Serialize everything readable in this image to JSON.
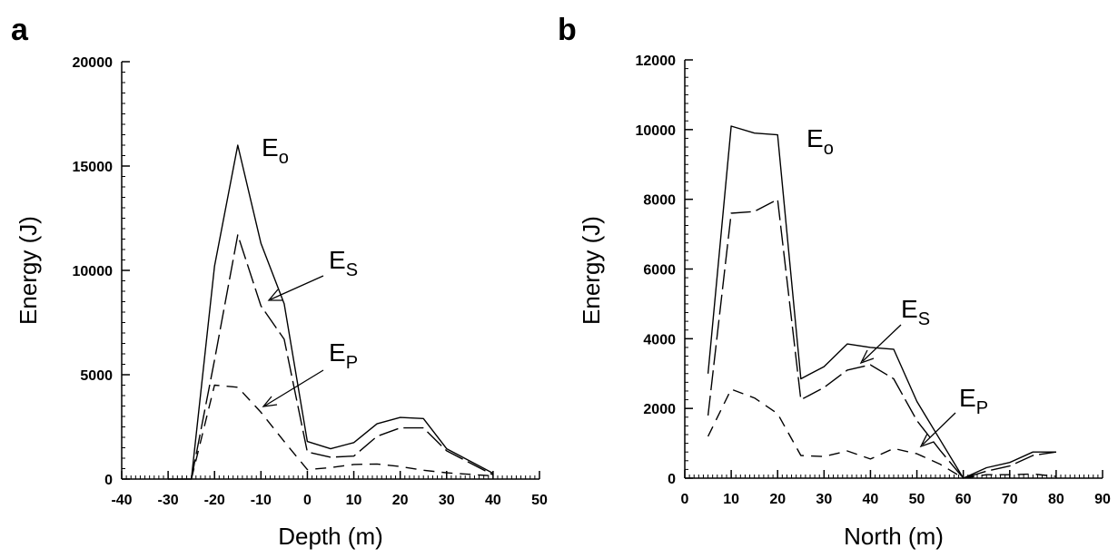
{
  "figure": {
    "panels": [
      "a",
      "b"
    ]
  },
  "chart_data": [
    {
      "type": "line",
      "panel_label": "a",
      "xlabel": "Depth (m)",
      "ylabel": "Energy (J)",
      "xlim": [
        -40,
        50
      ],
      "ylim": [
        0,
        20000
      ],
      "x_ticks": [
        -40,
        -30,
        -20,
        -10,
        0,
        10,
        20,
        30,
        40,
        50
      ],
      "y_ticks": [
        0,
        5000,
        10000,
        15000,
        20000
      ],
      "grid": false,
      "legend": "none",
      "series": [
        {
          "name": "Eo",
          "style": "solid",
          "x": [
            -30,
            -25,
            -20,
            -15,
            -10,
            -5,
            0,
            5,
            10,
            15,
            20,
            25,
            30,
            40
          ],
          "y": [
            0,
            0,
            10200,
            16000,
            11300,
            8400,
            1800,
            1450,
            1750,
            2650,
            2950,
            2900,
            1450,
            280
          ]
        },
        {
          "name": "Es",
          "style": "long-dash",
          "x": [
            -25,
            -20,
            -15,
            -10,
            -5,
            0,
            5,
            10,
            15,
            20,
            25,
            30,
            40
          ],
          "y": [
            0,
            5700,
            11700,
            8300,
            6700,
            1300,
            1050,
            1100,
            2050,
            2450,
            2450,
            1350,
            200
          ]
        },
        {
          "name": "Ep",
          "style": "short-dash",
          "x": [
            -25,
            -20,
            -15,
            -10,
            -5,
            0,
            5,
            10,
            15,
            20,
            25,
            30,
            40
          ],
          "y": [
            0,
            4500,
            4400,
            3200,
            1800,
            450,
            550,
            700,
            720,
            600,
            420,
            300,
            150
          ]
        }
      ],
      "annotations": [
        {
          "main": "E",
          "sub": "o"
        },
        {
          "main": "E",
          "sub": "S"
        },
        {
          "main": "E",
          "sub": "P"
        }
      ]
    },
    {
      "type": "line",
      "panel_label": "b",
      "xlabel": "North (m)",
      "ylabel": "Energy (J)",
      "xlim": [
        0,
        90
      ],
      "ylim": [
        0,
        12000
      ],
      "x_ticks": [
        0,
        10,
        20,
        30,
        40,
        50,
        60,
        70,
        80,
        90
      ],
      "y_ticks": [
        0,
        2000,
        4000,
        6000,
        8000,
        10000,
        12000
      ],
      "grid": false,
      "legend": "none",
      "series": [
        {
          "name": "Eo",
          "style": "solid",
          "x": [
            5,
            10,
            15,
            20,
            25,
            30,
            35,
            40,
            45,
            50,
            55,
            60,
            65,
            70,
            75,
            80
          ],
          "y": [
            3000,
            10100,
            9900,
            9850,
            2850,
            3200,
            3850,
            3750,
            3700,
            2200,
            1100,
            0,
            300,
            450,
            750,
            750
          ]
        },
        {
          "name": "Es",
          "style": "long-dash",
          "x": [
            5,
            10,
            15,
            20,
            25,
            30,
            35,
            40,
            45,
            50,
            55,
            60,
            65,
            70,
            75,
            80
          ],
          "y": [
            1800,
            7600,
            7650,
            8000,
            2250,
            2600,
            3100,
            3250,
            2850,
            1650,
            800,
            0,
            200,
            350,
            650,
            750
          ]
        },
        {
          "name": "Ep",
          "style": "short-dash",
          "x": [
            5,
            10,
            15,
            20,
            25,
            30,
            35,
            40,
            45,
            50,
            55,
            60,
            65,
            70,
            75,
            80
          ],
          "y": [
            1200,
            2550,
            2300,
            1850,
            650,
            620,
            780,
            550,
            850,
            700,
            400,
            0,
            100,
            100,
            120,
            50
          ]
        }
      ],
      "annotations": [
        {
          "main": "E",
          "sub": "o"
        },
        {
          "main": "E",
          "sub": "S"
        },
        {
          "main": "E",
          "sub": "P"
        }
      ]
    }
  ]
}
